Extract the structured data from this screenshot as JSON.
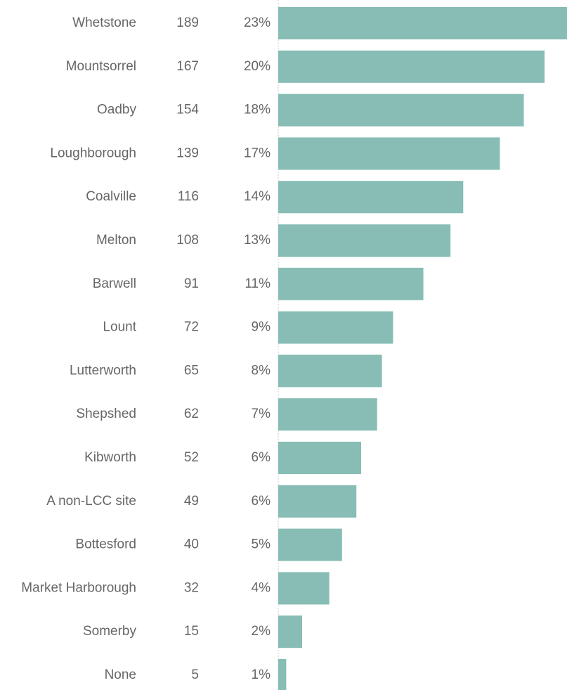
{
  "chart_data": {
    "type": "bar",
    "categories": [
      "Whetstone",
      "Mountsorrel",
      "Oadby",
      "Loughborough",
      "Coalville",
      "Melton",
      "Barwell",
      "Lount",
      "Lutterworth",
      "Shepshed",
      "Kibworth",
      "A non-LCC site",
      "Bottesford",
      "Market Harborough",
      "Somerby",
      "None"
    ],
    "values": [
      189,
      167,
      154,
      139,
      116,
      108,
      91,
      72,
      65,
      62,
      52,
      49,
      40,
      32,
      15,
      5
    ],
    "shares": [
      "23%",
      "20%",
      "18%",
      "17%",
      "14%",
      "13%",
      "11%",
      "9%",
      "8%",
      "7%",
      "6%",
      "6%",
      "5%",
      "4%",
      "2%",
      "1%"
    ],
    "color": "#87bdb4"
  }
}
